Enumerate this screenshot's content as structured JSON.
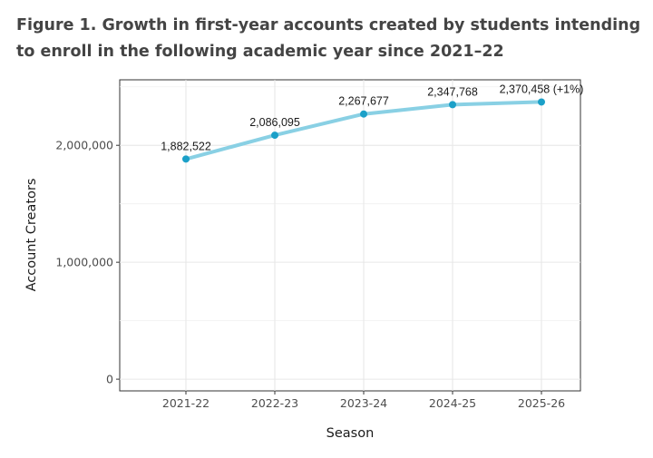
{
  "title": "Figure 1. Growth in first-year accounts created by students intending to enroll in the following academic year since 2021–22",
  "chart_data": {
    "type": "line",
    "title": "Figure 1. Growth in first-year accounts created by students intending to enroll in the following academic year since 2021–22",
    "xlabel": "Season",
    "ylabel": "Account Creators",
    "categories": [
      "2021-22",
      "2022-23",
      "2023-24",
      "2024-25",
      "2025-26"
    ],
    "series": [
      {
        "name": "Account Creators",
        "values": [
          1882522,
          2086095,
          2267677,
          2347768,
          2370458
        ],
        "labels": [
          "1,882,522",
          "2,086,095",
          "2,267,677",
          "2,347,768",
          "2,370,458 (+1%)"
        ]
      }
    ],
    "yticks": [
      0,
      1000000,
      2000000
    ],
    "ytick_labels": [
      "0",
      "1,000,000",
      "2,000,000"
    ],
    "ylim": [
      -100000,
      2560000
    ],
    "grid": true,
    "line_color": "#89d0e4",
    "point_color": "#1ba0c8"
  }
}
